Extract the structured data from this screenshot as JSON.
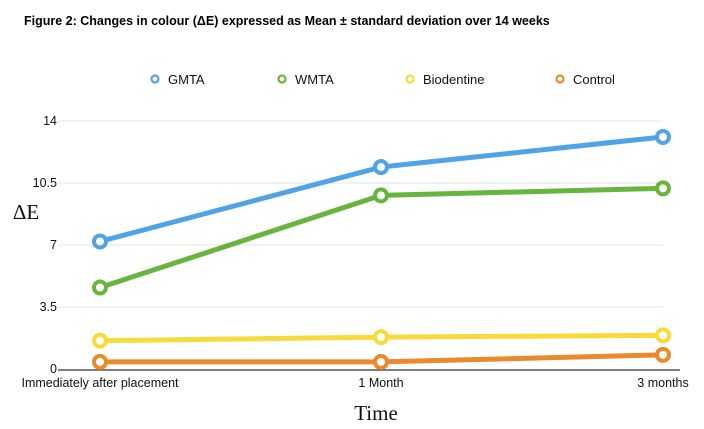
{
  "figure_title": "Figure 2: Changes in colour (ΔE) expressed as Mean ± standard deviation over 14 weeks",
  "chart_data": {
    "type": "line",
    "xlabel": "Time",
    "ylabel": "ΔE",
    "categories": [
      "Immediately after placement",
      "1 Month",
      "3 months"
    ],
    "y_ticks": [
      0,
      3.5,
      7,
      10.5,
      14
    ],
    "y_tick_labels": [
      "0",
      "3.5",
      "7",
      "10.5",
      "14"
    ],
    "ylim": [
      0,
      14
    ],
    "grid": true,
    "legend_position": "top",
    "series": [
      {
        "name": "GMTA",
        "color": "#4fa3e6",
        "values": [
          7.2,
          11.4,
          13.1
        ]
      },
      {
        "name": "WMTA",
        "color": "#67b43f",
        "values": [
          4.6,
          9.8,
          10.2
        ]
      },
      {
        "name": "Biodentine",
        "color": "#f7da3b",
        "values": [
          1.6,
          1.8,
          1.9
        ]
      },
      {
        "name": "Control",
        "color": "#e98a2d",
        "values": [
          0.4,
          0.4,
          0.8
        ]
      }
    ]
  }
}
